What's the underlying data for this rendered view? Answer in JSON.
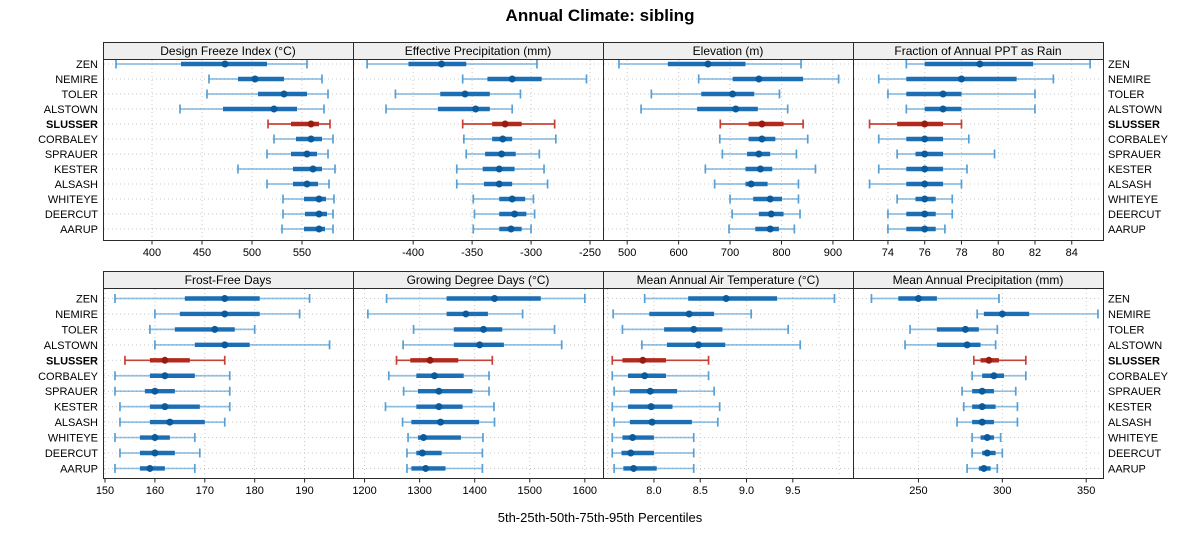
{
  "title": "Annual Climate: sibling",
  "footer": "5th-25th-50th-75th-95th Percentiles",
  "stations": [
    "ZEN",
    "NEMIRE",
    "TOLER",
    "ALSTOWN",
    "SLUSSER",
    "CORBALEY",
    "SPRAUER",
    "KESTER",
    "ALSASH",
    "WHITEYE",
    "DEERCUT",
    "AARUP"
  ],
  "highlighted_station": "SLUSSER",
  "percentile_levels": [
    "5th",
    "25th",
    "50th",
    "75th",
    "95th"
  ],
  "colors": {
    "blue_whisker": "#4e9bd4",
    "blue_bar": "#1c6fb4",
    "blue_dot": "#0b5a9b",
    "red_whisker": "#c23a2d",
    "red_bar": "#b22a1e",
    "red_dot": "#961c12",
    "grid": "#c8c8c8",
    "header_bg": "#efefef",
    "border": "#2a2a2a",
    "text": "#000000"
  },
  "chart_data": {
    "type": "dotplot-percentile-lattice",
    "grid_rows": 2,
    "grid_cols": 4,
    "panels": [
      {
        "title": "Design Freeze Index (°C)",
        "xlim": [
          351,
          601
        ],
        "tick_values": [
          400,
          450,
          500,
          550
        ],
        "tick_labels": [
          "400",
          "450",
          "500",
          "550"
        ],
        "grid_extra": [],
        "values": [
          [
            364,
            429,
            473,
            515,
            555
          ],
          [
            457,
            486,
            503,
            532,
            570
          ],
          [
            455,
            506,
            532,
            555,
            576
          ],
          [
            428,
            471,
            522,
            545,
            572
          ],
          [
            516,
            539,
            559,
            567,
            578
          ],
          [
            522,
            544,
            559,
            570,
            581
          ],
          [
            515,
            539,
            555,
            565,
            576
          ],
          [
            486,
            541,
            561,
            570,
            583
          ],
          [
            515,
            541,
            555,
            566,
            577
          ],
          [
            531,
            552,
            567,
            574,
            582
          ],
          [
            531,
            553,
            567,
            575,
            581
          ],
          [
            530,
            552,
            567,
            573,
            581
          ]
        ]
      },
      {
        "title": "Effective Precipitation (mm)",
        "xlim": [
          -451,
          -239
        ],
        "tick_values": [
          -400,
          -350,
          -300,
          -250
        ],
        "tick_labels": [
          "-400",
          "-350",
          "-300",
          "-250"
        ],
        "grid_extra": [],
        "values": [
          [
            -439,
            -404,
            -376,
            -355,
            -295
          ],
          [
            -358,
            -337,
            -316,
            -291,
            -253
          ],
          [
            -415,
            -377,
            -356,
            -335,
            -309
          ],
          [
            -423,
            -379,
            -347,
            -335,
            -316
          ],
          [
            -358,
            -333,
            -322,
            -308,
            -280
          ],
          [
            -357,
            -333,
            -324,
            -316,
            -279
          ],
          [
            -355,
            -339,
            -325,
            -313,
            -293
          ],
          [
            -363,
            -341,
            -327,
            -314,
            -289
          ],
          [
            -363,
            -340,
            -327,
            -316,
            -286
          ],
          [
            -349,
            -327,
            -316,
            -305,
            -298
          ],
          [
            -348,
            -327,
            -314,
            -304,
            -297
          ],
          [
            -349,
            -327,
            -317,
            -308,
            -300
          ]
        ]
      },
      {
        "title": "Elevation (m)",
        "xlim": [
          453,
          939
        ],
        "tick_values": [
          500,
          600,
          700,
          800,
          900
        ],
        "tick_labels": [
          "500",
          "600",
          "700",
          "800",
          "900"
        ],
        "grid_extra": [],
        "values": [
          [
            484,
            579,
            657,
            730,
            838
          ],
          [
            639,
            705,
            756,
            842,
            911
          ],
          [
            547,
            644,
            705,
            747,
            796
          ],
          [
            527,
            636,
            711,
            754,
            812
          ],
          [
            681,
            736,
            762,
            804,
            842
          ],
          [
            680,
            736,
            762,
            788,
            851
          ],
          [
            685,
            733,
            756,
            778,
            829
          ],
          [
            652,
            730,
            759,
            782,
            866
          ],
          [
            670,
            730,
            741,
            773,
            833
          ],
          [
            700,
            745,
            778,
            801,
            833
          ],
          [
            704,
            756,
            780,
            804,
            836
          ],
          [
            698,
            749,
            778,
            795,
            825
          ]
        ]
      },
      {
        "title": "Fraction of Annual PPT as Rain",
        "xlim": [
          72.1,
          85.7
        ],
        "tick_values": [
          74,
          76,
          78,
          80,
          82,
          84
        ],
        "tick_labels": [
          "74",
          "76",
          "78",
          "80",
          "82",
          "84"
        ],
        "grid_extra": [],
        "values": [
          [
            75.0,
            76.0,
            79.0,
            81.9,
            85.0
          ],
          [
            73.5,
            75.0,
            78.0,
            81.0,
            83.0
          ],
          [
            74.0,
            75.0,
            77.0,
            78.0,
            82.0
          ],
          [
            75.0,
            76.0,
            77.0,
            78.0,
            82.0
          ],
          [
            73.0,
            74.5,
            76.0,
            77.0,
            78.0
          ],
          [
            73.5,
            75.0,
            76.0,
            77.0,
            78.4
          ],
          [
            74.5,
            75.5,
            76.0,
            77.0,
            79.8
          ],
          [
            73.5,
            75.0,
            76.0,
            77.0,
            78.3
          ],
          [
            73.0,
            75.0,
            76.0,
            77.0,
            78.0
          ],
          [
            74.5,
            75.5,
            76.0,
            76.6,
            77.5
          ],
          [
            74.0,
            75.0,
            76.0,
            76.6,
            77.5
          ],
          [
            74.0,
            75.0,
            76.0,
            76.6,
            77.1
          ]
        ]
      },
      {
        "title": "Frost-Free Days",
        "xlim": [
          149.6,
          199.7
        ],
        "tick_values": [
          150,
          160,
          170,
          180,
          190
        ],
        "tick_labels": [
          "150",
          "160",
          "170",
          "180",
          "190"
        ],
        "grid_extra": [],
        "values": [
          [
            152,
            166,
            174,
            181,
            191
          ],
          [
            160,
            165,
            174,
            181,
            189
          ],
          [
            159,
            164,
            172,
            176,
            180
          ],
          [
            160,
            168,
            174,
            179,
            195
          ],
          [
            154,
            159,
            162,
            167,
            174
          ],
          [
            152,
            159,
            162,
            168,
            175
          ],
          [
            152,
            158,
            160,
            164,
            175
          ],
          [
            153,
            159,
            162,
            169,
            175
          ],
          [
            153,
            159,
            163,
            170,
            174
          ],
          [
            152,
            157,
            160,
            163,
            168
          ],
          [
            153,
            157,
            160,
            164,
            169
          ],
          [
            152,
            157,
            159,
            162,
            168
          ]
        ]
      },
      {
        "title": "Growing Degree Days (°C)",
        "xlim": [
          1179,
          1633
        ],
        "tick_values": [
          1200,
          1300,
          1400,
          1500,
          1600
        ],
        "tick_labels": [
          "1200",
          "1300",
          "1400",
          "1500",
          "1600"
        ],
        "grid_extra": [],
        "values": [
          [
            1240,
            1349,
            1436,
            1520,
            1600
          ],
          [
            1206,
            1349,
            1384,
            1424,
            1487
          ],
          [
            1289,
            1362,
            1416,
            1450,
            1545
          ],
          [
            1270,
            1362,
            1409,
            1453,
            1558
          ],
          [
            1258,
            1283,
            1319,
            1370,
            1432
          ],
          [
            1244,
            1294,
            1327,
            1380,
            1426
          ],
          [
            1271,
            1297,
            1335,
            1396,
            1426
          ],
          [
            1238,
            1294,
            1335,
            1378,
            1435
          ],
          [
            1269,
            1285,
            1338,
            1408,
            1436
          ],
          [
            1279,
            1297,
            1307,
            1375,
            1415
          ],
          [
            1277,
            1294,
            1305,
            1340,
            1414
          ],
          [
            1277,
            1285,
            1311,
            1347,
            1414
          ]
        ]
      },
      {
        "title": "Mean Annual Air Temperature (°C)",
        "xlim": [
          7.45,
          10.15
        ],
        "tick_values": [
          8.0,
          8.5,
          9.0,
          9.5
        ],
        "tick_labels": [
          "8.0",
          "8.5",
          "9.0",
          "9.5"
        ],
        "grid_extra": [
          7.5,
          10.0
        ],
        "values": [
          [
            7.9,
            8.37,
            8.78,
            9.33,
            9.95
          ],
          [
            7.56,
            7.95,
            8.38,
            8.65,
            9.05
          ],
          [
            7.66,
            8.11,
            8.43,
            8.74,
            9.45
          ],
          [
            7.87,
            8.14,
            8.48,
            8.77,
            9.58
          ],
          [
            7.55,
            7.66,
            7.88,
            8.13,
            8.59
          ],
          [
            7.55,
            7.72,
            7.9,
            8.13,
            8.59
          ],
          [
            7.57,
            7.74,
            7.96,
            8.25,
            8.65
          ],
          [
            7.55,
            7.72,
            7.97,
            8.2,
            8.71
          ],
          [
            7.57,
            7.74,
            7.98,
            8.41,
            8.69
          ],
          [
            7.55,
            7.66,
            7.77,
            8.0,
            8.43
          ],
          [
            7.55,
            7.65,
            7.75,
            8.0,
            8.43
          ],
          [
            7.57,
            7.67,
            7.78,
            8.03,
            8.43
          ]
        ]
      },
      {
        "title": "Mean Annual Precipitation (mm)",
        "xlim": [
          211,
          360
        ],
        "tick_values": [
          250,
          300,
          350
        ],
        "tick_labels": [
          "250",
          "300",
          "350"
        ],
        "grid_extra": [],
        "values": [
          [
            222,
            238,
            250,
            261,
            298
          ],
          [
            285,
            289,
            300,
            316,
            357
          ],
          [
            245,
            261,
            278,
            286,
            297
          ],
          [
            242,
            261,
            279,
            287,
            296
          ],
          [
            283,
            287,
            292,
            298,
            314
          ],
          [
            282,
            288,
            295,
            301,
            314
          ],
          [
            276,
            282,
            288,
            295,
            308
          ],
          [
            277,
            282,
            288,
            296,
            309
          ],
          [
            273,
            282,
            288,
            295,
            309
          ],
          [
            282,
            287,
            291,
            295,
            299
          ],
          [
            282,
            288,
            291,
            296,
            300
          ],
          [
            279,
            286,
            289,
            293,
            297
          ]
        ]
      }
    ]
  }
}
